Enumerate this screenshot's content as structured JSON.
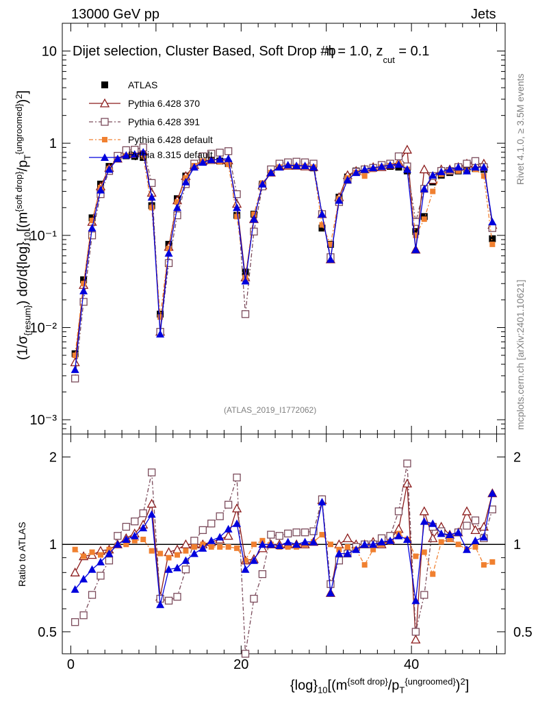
{
  "header": {
    "energy_label": "13000 GeV pp",
    "category": "Jets"
  },
  "side": {
    "rivet": "Rivet 4.1.0, ≥ 3.5M events",
    "mcplots": "mcplots.cern.ch [arXiv:2401.10621]"
  },
  "colors": {
    "atlas": "#000000",
    "py6_370": "#8b1a1a",
    "py6_391": "#7a4a5a",
    "py6_default": "#f08030",
    "py8": "#0000dd"
  },
  "chart_data": [
    {
      "type": "line",
      "panel": "main",
      "title": "Dijet selection, Cluster Based, Soft Drop #b",
      "title_suffix": "= 1.0, z",
      "title_sub": "cut",
      "title_end": "= 0.1",
      "beta_glyph": "η",
      "analysis_label": "(ATLAS_2019_I1772062)",
      "ylabel": "(1/σ_{resum}) dσ/d{log}_{10}[(m^{soft drop}/p_T^{ungroomed})^2]",
      "ylog": true,
      "ylim": [
        0.0007,
        20
      ],
      "xlim": [
        -1,
        51
      ],
      "yticks": [
        {
          "value": 10,
          "label": "10"
        },
        {
          "value": 1,
          "label": "1"
        },
        {
          "value": 0.1,
          "label": "10⁻¹"
        },
        {
          "value": 0.01,
          "label": "10⁻²"
        },
        {
          "value": 0.001,
          "label": "10⁻³"
        }
      ],
      "x": [
        0.5,
        1.5,
        2.5,
        3.5,
        4.5,
        5.5,
        6.5,
        7.5,
        8.5,
        9.5,
        10.5,
        11.5,
        12.5,
        13.5,
        14.5,
        15.5,
        16.5,
        17.5,
        18.5,
        19.5,
        20.5,
        21.5,
        22.5,
        23.5,
        24.5,
        25.5,
        26.5,
        27.5,
        28.5,
        29.5,
        30.5,
        31.5,
        32.5,
        33.5,
        34.5,
        35.5,
        36.5,
        37.5,
        38.5,
        39.5,
        40.5,
        41.5,
        42.5,
        43.5,
        44.5,
        45.5,
        46.5,
        47.5,
        48.5,
        49.5
      ],
      "series": [
        {
          "name": "ATLAS",
          "marker": "square-filled",
          "values": [
            0.0052,
            0.033,
            0.155,
            0.36,
            0.56,
            0.68,
            0.73,
            0.72,
            0.7,
            0.21,
            0.014,
            0.08,
            0.25,
            0.44,
            0.58,
            0.64,
            0.65,
            0.64,
            0.6,
            0.165,
            0.04,
            0.17,
            0.36,
            0.48,
            0.56,
            0.57,
            0.57,
            0.56,
            0.54,
            0.12,
            0.08,
            0.26,
            0.43,
            0.5,
            0.52,
            0.54,
            0.55,
            0.56,
            0.55,
            0.5,
            0.11,
            0.16,
            0.38,
            0.45,
            0.48,
            0.5,
            0.52,
            0.53,
            0.52,
            0.092
          ]
        },
        {
          "name": "Pythia 6.428 370",
          "marker": "triangle-open",
          "values": [
            0.0042,
            0.029,
            0.14,
            0.34,
            0.54,
            0.68,
            0.76,
            0.78,
            0.82,
            0.29,
            0.009,
            0.075,
            0.24,
            0.44,
            0.58,
            0.64,
            0.66,
            0.66,
            0.65,
            0.22,
            0.035,
            0.15,
            0.35,
            0.48,
            0.56,
            0.57,
            0.57,
            0.56,
            0.55,
            0.17,
            0.055,
            0.26,
            0.45,
            0.5,
            0.52,
            0.55,
            0.55,
            0.58,
            0.62,
            0.85,
            0.07,
            0.52,
            0.4,
            0.52,
            0.52,
            0.55,
            0.6,
            0.6,
            0.6,
            0.13
          ]
        },
        {
          "name": "Pythia 6.428 391",
          "marker": "square-open",
          "values": [
            0.0028,
            0.019,
            0.1,
            0.28,
            0.5,
            0.73,
            0.84,
            0.85,
            0.9,
            0.37,
            0.009,
            0.05,
            0.165,
            0.36,
            0.6,
            0.72,
            0.77,
            0.79,
            0.82,
            0.28,
            0.014,
            0.11,
            0.34,
            0.52,
            0.6,
            0.62,
            0.63,
            0.62,
            0.6,
            0.17,
            0.058,
            0.23,
            0.4,
            0.49,
            0.52,
            0.54,
            0.58,
            0.6,
            0.72,
            0.56,
            0.14,
            0.32,
            0.44,
            0.5,
            0.5,
            0.55,
            0.6,
            0.64,
            0.55,
            0.12
          ]
        },
        {
          "name": "Pythia 6.428 default",
          "marker": "square-filled-small",
          "values": [
            0.005,
            0.03,
            0.145,
            0.33,
            0.53,
            0.67,
            0.73,
            0.74,
            0.73,
            0.2,
            0.013,
            0.072,
            0.23,
            0.42,
            0.57,
            0.64,
            0.64,
            0.63,
            0.59,
            0.16,
            0.035,
            0.17,
            0.37,
            0.48,
            0.55,
            0.56,
            0.56,
            0.56,
            0.55,
            0.13,
            0.08,
            0.25,
            0.42,
            0.48,
            0.44,
            0.52,
            0.55,
            0.57,
            0.6,
            0.52,
            0.1,
            0.15,
            0.3,
            0.46,
            0.5,
            0.5,
            0.5,
            0.52,
            0.44,
            0.08
          ]
        },
        {
          "name": "Pythia 8.315 default",
          "marker": "triangle-filled",
          "values": [
            0.0035,
            0.025,
            0.12,
            0.31,
            0.52,
            0.68,
            0.74,
            0.76,
            0.8,
            0.26,
            0.0085,
            0.064,
            0.2,
            0.38,
            0.55,
            0.62,
            0.66,
            0.67,
            0.68,
            0.2,
            0.032,
            0.15,
            0.36,
            0.48,
            0.55,
            0.58,
            0.57,
            0.57,
            0.55,
            0.17,
            0.055,
            0.24,
            0.4,
            0.48,
            0.52,
            0.54,
            0.56,
            0.58,
            0.59,
            0.52,
            0.07,
            0.32,
            0.45,
            0.49,
            0.52,
            0.55,
            0.5,
            0.55,
            0.55,
            0.14
          ]
        }
      ]
    },
    {
      "type": "line",
      "panel": "ratio",
      "ylabel": "Ratio to ATLAS",
      "xlabel": "{log}_{10}[(m^{soft drop}/p_T^{ungroomed})^2]",
      "ylog": true,
      "ylim": [
        0.42,
        2.4
      ],
      "reference": 1,
      "yticks": [
        {
          "value": 2,
          "label": "2"
        },
        {
          "value": 1,
          "label": "1"
        },
        {
          "value": 0.5,
          "label": "0.5"
        }
      ],
      "xticks": [
        {
          "value": 0,
          "label": "0"
        },
        {
          "value": 20,
          "label": "20"
        },
        {
          "value": 40,
          "label": "40"
        }
      ],
      "x": [
        0.5,
        1.5,
        2.5,
        3.5,
        4.5,
        5.5,
        6.5,
        7.5,
        8.5,
        9.5,
        10.5,
        11.5,
        12.5,
        13.5,
        14.5,
        15.5,
        16.5,
        17.5,
        18.5,
        19.5,
        20.5,
        21.5,
        22.5,
        23.5,
        24.5,
        25.5,
        26.5,
        27.5,
        28.5,
        29.5,
        30.5,
        31.5,
        32.5,
        33.5,
        34.5,
        35.5,
        36.5,
        37.5,
        38.5,
        39.5,
        40.5,
        41.5,
        42.5,
        43.5,
        44.5,
        45.5,
        46.5,
        47.5,
        48.5,
        49.5
      ],
      "series": [
        {
          "name": "Pythia 6.428 370",
          "marker": "triangle-open",
          "values": [
            0.8,
            0.91,
            0.92,
            0.95,
            0.96,
            1.0,
            1.05,
            1.09,
            1.17,
            1.38,
            0.66,
            0.94,
            0.96,
            1.0,
            1.0,
            1.0,
            1.02,
            1.04,
            1.07,
            1.33,
            0.88,
            0.89,
            0.97,
            1.0,
            1.0,
            1.0,
            1.0,
            1.0,
            1.02,
            1.42,
            0.68,
            1.0,
            1.05,
            1.0,
            1.0,
            1.02,
            1.0,
            1.04,
            1.13,
            1.62,
            0.47,
            1.3,
            1.05,
            1.15,
            1.08,
            1.1,
            1.3,
            1.12,
            1.15,
            1.5
          ]
        },
        {
          "name": "Pythia 6.428 391",
          "marker": "square-open",
          "values": [
            0.54,
            0.57,
            0.67,
            0.78,
            0.88,
            1.07,
            1.15,
            1.2,
            1.28,
            1.77,
            0.65,
            0.64,
            0.66,
            0.82,
            1.03,
            1.12,
            1.18,
            1.25,
            1.37,
            1.7,
            0.36,
            0.65,
            0.79,
            1.08,
            1.07,
            1.09,
            1.1,
            1.1,
            1.11,
            1.43,
            0.73,
            0.88,
            0.93,
            0.98,
            1.0,
            1.0,
            1.05,
            1.07,
            1.3,
            1.9,
            0.5,
            0.67,
            1.15,
            1.11,
            1.05,
            1.1,
            1.16,
            1.21,
            1.05,
            1.32
          ]
        },
        {
          "name": "Pythia 6.428 default",
          "marker": "square-filled-small",
          "values": [
            0.96,
            0.91,
            0.94,
            0.92,
            0.96,
            0.99,
            1.0,
            1.03,
            1.04,
            0.95,
            0.93,
            0.9,
            0.92,
            0.95,
            0.98,
            1.0,
            0.98,
            0.98,
            0.98,
            0.97,
            0.88,
            1.0,
            1.03,
            1.0,
            0.98,
            0.98,
            0.98,
            1.0,
            1.02,
            1.08,
            1.0,
            0.96,
            0.98,
            0.96,
            0.85,
            0.96,
            1.0,
            1.02,
            1.09,
            1.04,
            0.91,
            0.94,
            0.79,
            1.02,
            1.04,
            1.0,
            0.96,
            0.98,
            0.85,
            0.87
          ]
        },
        {
          "name": "Pythia 8.315 default",
          "marker": "triangle-filled",
          "values": [
            0.7,
            0.76,
            0.82,
            0.87,
            0.93,
            1.0,
            1.04,
            1.07,
            1.14,
            1.27,
            0.62,
            0.82,
            0.83,
            0.88,
            0.93,
            0.97,
            1.03,
            1.06,
            1.13,
            1.18,
            0.82,
            0.88,
            1.0,
            1.0,
            0.99,
            1.02,
            1.0,
            1.02,
            1.02,
            1.4,
            0.68,
            0.93,
            0.93,
            0.96,
            1.0,
            1.0,
            1.02,
            1.03,
            1.07,
            1.04,
            0.64,
            1.2,
            1.18,
            1.09,
            1.08,
            1.1,
            0.96,
            1.03,
            1.06,
            1.5
          ]
        }
      ]
    }
  ]
}
